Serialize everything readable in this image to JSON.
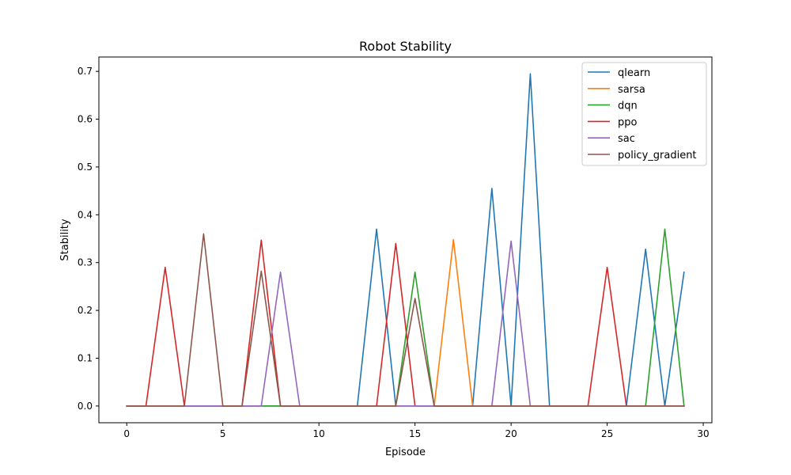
{
  "chart_data": {
    "type": "line",
    "title": "Robot Stability",
    "xlabel": "Episode",
    "ylabel": "Stability",
    "xlim": [
      -1.45,
      30.45
    ],
    "ylim": [
      -0.035,
      0.73
    ],
    "xticks": [
      0,
      5,
      10,
      15,
      20,
      25,
      30
    ],
    "yticks": [
      0.0,
      0.1,
      0.2,
      0.3,
      0.4,
      0.5,
      0.6,
      0.7
    ],
    "ytick_labels": [
      "0.0",
      "0.1",
      "0.2",
      "0.3",
      "0.4",
      "0.5",
      "0.6",
      "0.7"
    ],
    "grid": false,
    "legend_position": "top-right",
    "x": [
      0,
      1,
      2,
      3,
      4,
      5,
      6,
      7,
      8,
      9,
      10,
      11,
      12,
      13,
      14,
      15,
      16,
      17,
      18,
      19,
      20,
      21,
      22,
      23,
      24,
      25,
      26,
      27,
      28,
      29
    ],
    "series": [
      {
        "name": "qlearn",
        "color": "#1f77b4",
        "values": [
          0,
          0,
          0,
          0,
          0,
          0,
          0,
          0,
          0,
          0,
          0,
          0,
          0,
          0.37,
          0,
          0,
          0,
          0,
          0,
          0.455,
          0,
          0.695,
          0,
          0,
          0,
          0,
          0,
          0.328,
          0,
          0.28
        ]
      },
      {
        "name": "sarsa",
        "color": "#ff7f0e",
        "values": [
          0,
          0,
          0,
          0,
          0,
          0,
          0,
          0,
          0,
          0,
          0,
          0,
          0,
          0,
          0,
          0,
          0,
          0.348,
          0,
          0,
          0,
          0,
          0,
          0,
          0,
          0,
          0,
          0,
          0,
          0
        ]
      },
      {
        "name": "dqn",
        "color": "#2ca02c",
        "values": [
          0,
          0,
          0,
          0,
          0,
          0,
          0,
          0,
          0,
          0,
          0,
          0,
          0,
          0,
          0,
          0.28,
          0,
          0,
          0,
          0,
          0,
          0,
          0,
          0,
          0,
          0,
          0,
          0,
          0.37,
          0
        ]
      },
      {
        "name": "ppo",
        "color": "#d62728",
        "values": [
          0,
          0,
          0.29,
          0,
          0,
          0,
          0,
          0.347,
          0,
          0,
          0,
          0,
          0,
          0,
          0.34,
          0,
          0,
          0,
          0,
          0,
          0,
          0,
          0,
          0,
          0,
          0.29,
          0,
          0,
          0,
          0
        ]
      },
      {
        "name": "sac",
        "color": "#9467bd",
        "values": [
          0,
          0,
          0,
          0,
          0,
          0,
          0,
          0,
          0.28,
          0,
          0,
          0,
          0,
          0,
          0,
          0,
          0,
          0,
          0,
          0,
          0.345,
          0,
          0,
          0,
          0,
          0,
          0,
          0,
          0,
          0
        ]
      },
      {
        "name": "policy_gradient",
        "color": "#8c564b",
        "values": [
          0,
          0,
          0,
          0,
          0.36,
          0,
          0,
          0.282,
          0,
          0,
          0,
          0,
          0,
          0,
          0,
          0.225,
          0,
          0,
          0,
          0,
          0,
          0,
          0,
          0,
          0,
          0,
          0,
          0,
          0,
          0
        ]
      }
    ]
  }
}
